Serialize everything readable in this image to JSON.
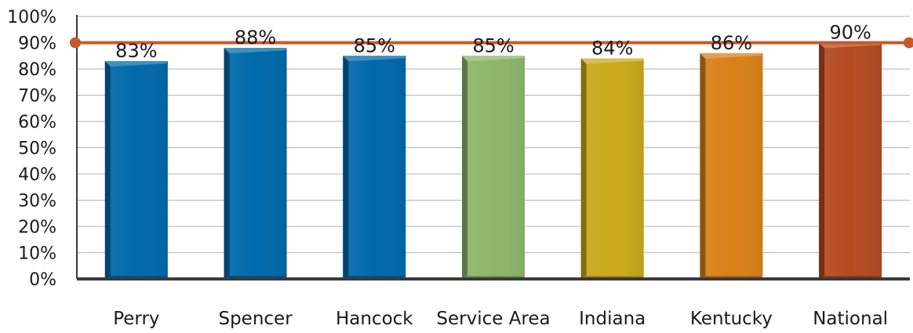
{
  "chart_data": {
    "type": "bar",
    "title": "",
    "xlabel": "",
    "ylabel": "",
    "categories": [
      "Perry",
      "Spencer",
      "Hancock",
      "Service Area",
      "Indiana",
      "Kentucky",
      "National"
    ],
    "values": [
      83,
      88,
      85,
      85,
      84,
      86,
      90
    ],
    "value_labels": [
      "83%",
      "88%",
      "85%",
      "85%",
      "84%",
      "86%",
      "90%"
    ],
    "bar_colors": [
      "#0069aa",
      "#0069aa",
      "#0069aa",
      "#8db56a",
      "#c9a81b",
      "#d88018",
      "#b34a22"
    ],
    "reference_line": {
      "value": 90,
      "color": "#c65a2a"
    },
    "ylim": [
      0,
      100
    ],
    "y_ticks": [
      0,
      10,
      20,
      30,
      40,
      50,
      60,
      70,
      80,
      90,
      100
    ],
    "y_tick_labels": [
      "0%",
      "10%",
      "20%",
      "30%",
      "40%",
      "50%",
      "60%",
      "70%",
      "80%",
      "90%",
      "100%"
    ],
    "grid": true,
    "legend": "none"
  }
}
